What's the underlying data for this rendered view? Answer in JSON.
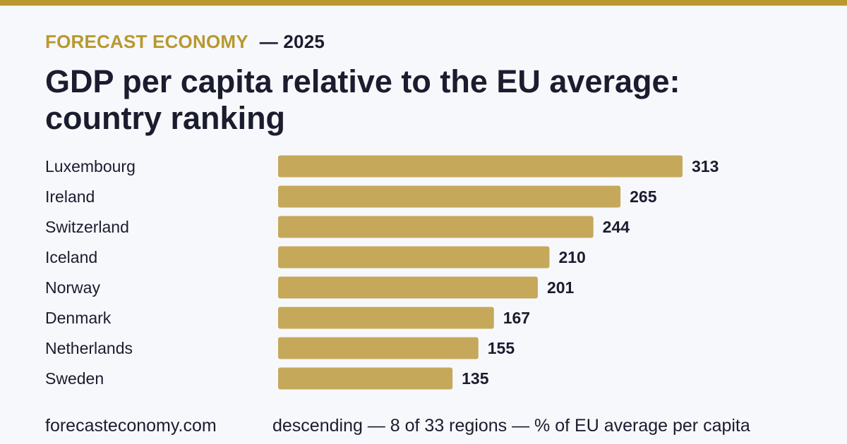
{
  "header": {
    "brand": "FORECAST ECONOMY",
    "year": "— 2025",
    "title": "GDP per capita relative to the EU average: country ranking"
  },
  "footer": {
    "site": "forecasteconomy.com",
    "note": "descending — 8 of 33 regions — % of EU average per capita"
  },
  "colors": {
    "accent": "#b8982f",
    "bar": "#c6a85b",
    "text": "#1b1c2e",
    "background": "#f7f8fc"
  },
  "chart_data": {
    "type": "bar",
    "orientation": "horizontal",
    "categories": [
      "Luxembourg",
      "Ireland",
      "Switzerland",
      "Iceland",
      "Norway",
      "Denmark",
      "Netherlands",
      "Sweden"
    ],
    "values": [
      313,
      265,
      244,
      210,
      201,
      167,
      155,
      135
    ],
    "title": "GDP per capita relative to the EU average: country ranking",
    "xlim": [
      0,
      313
    ],
    "grid": false,
    "legend": "none"
  }
}
